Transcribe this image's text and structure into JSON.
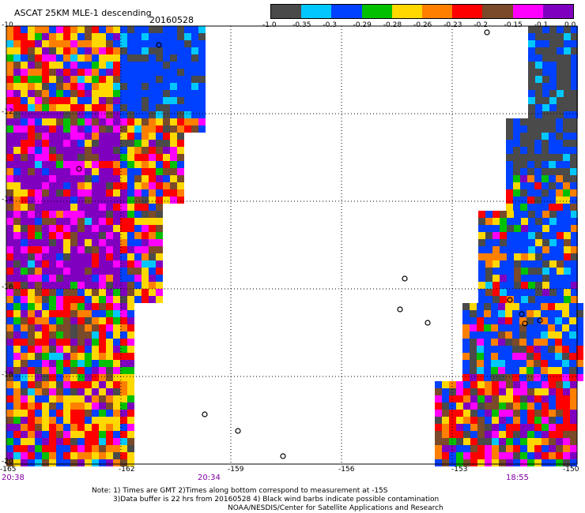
{
  "header": {
    "title": "ASCAT 25KM MLE-1 descending",
    "date": "20160528"
  },
  "colorbar": {
    "colors": [
      "#4a4a4a",
      "#00c8ff",
      "#0040ff",
      "#00c000",
      "#ffd800",
      "#ff8000",
      "#ff0000",
      "#7a4a2a",
      "#ff00ff",
      "#8000c0"
    ],
    "labels": [
      "-1.0",
      "-0.35",
      "-0.3",
      "-0.29",
      "-0.28",
      "-0.26",
      "-0.23",
      "-0.2",
      "-0.15",
      "-0.1",
      "0.0"
    ]
  },
  "axes": {
    "y_ticks": [
      "-10",
      "-12",
      "-14",
      "-16",
      "-18",
      "-20"
    ],
    "x_ticks": [
      "-165",
      "-162",
      "-159",
      "-156",
      "-153",
      "-150"
    ]
  },
  "swath_times": [
    "20:38",
    "20:34",
    "18:55"
  ],
  "notes": [
    "Note: 1) Times are GMT 2)Times along bottom correspond to measurement at -15S",
    "3)Data buffer is 22 hrs from 20160528 4) Black wind barbs indicate possible contamination",
    "NOAA/NESDIS/Center for Satellite Applications and Research"
  ]
}
